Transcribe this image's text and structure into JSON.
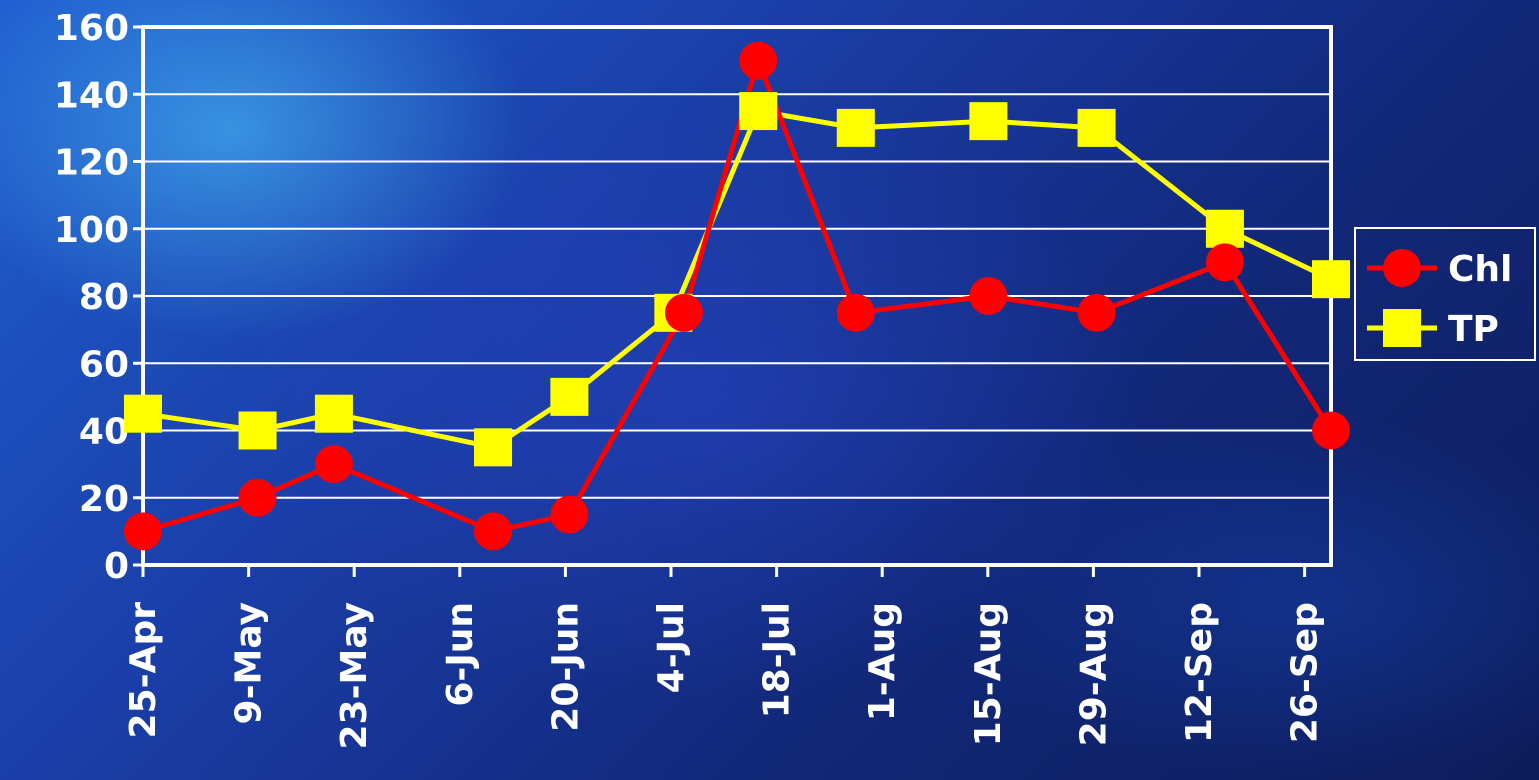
{
  "chart_data": {
    "type": "line",
    "categories": [
      "25-Apr",
      "9-May",
      "23-May",
      "6-Jun",
      "20-Jun",
      "4-Jul",
      "18-Jul",
      "1-Aug",
      "15-Aug",
      "29-Aug",
      "12-Sep",
      "26-Sep"
    ],
    "ylim": [
      0,
      160
    ],
    "yticks": [
      0,
      20,
      40,
      60,
      80,
      100,
      120,
      140,
      160
    ],
    "grid": true,
    "legend_position": "right",
    "series": [
      {
        "name": "Chl",
        "marker": "circle",
        "color": "#ff0000",
        "x_index": [
          0,
          1.08,
          1.8,
          3.3,
          4.02,
          5.1,
          5.8,
          6.72,
          7.97,
          8.99,
          10.2,
          11.2
        ],
        "values": [
          10,
          20,
          30,
          10,
          15,
          75,
          150,
          75,
          80,
          75,
          90,
          40
        ]
      },
      {
        "name": "TP",
        "marker": "square",
        "color": "#ffff00",
        "x_index": [
          0,
          1.08,
          1.8,
          3.3,
          4.02,
          5.0,
          5.8,
          6.72,
          7.97,
          8.99,
          10.2,
          11.2
        ],
        "values": [
          45,
          40,
          45,
          35,
          50,
          75,
          135,
          130,
          132,
          130,
          100,
          85
        ]
      }
    ],
    "colors": {
      "grid": "#ffffff",
      "axis": "#ffffff",
      "text": "#ffffff",
      "background": "#1a3ea8"
    }
  }
}
